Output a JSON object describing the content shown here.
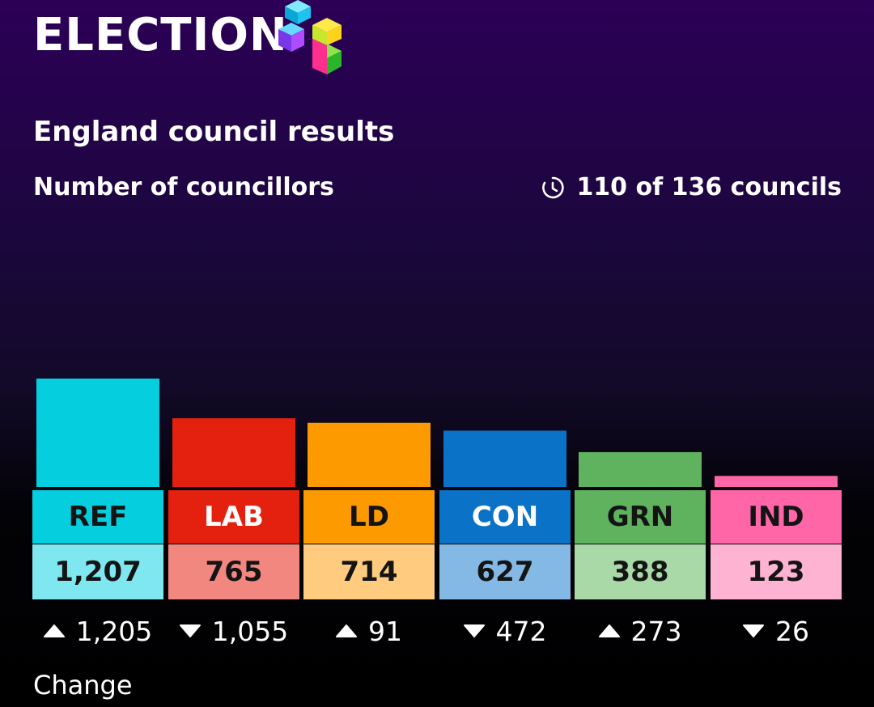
{
  "header": {
    "logo_text": "ELECTION"
  },
  "title": "England council results",
  "subtitle": "Number of councillors",
  "progress": "110 of 136 councils",
  "change_label": "Change",
  "chart_data": {
    "type": "bar",
    "title": "England council results",
    "ylabel": "Number of councillors",
    "categories": [
      "REF",
      "LAB",
      "LD",
      "CON",
      "GRN",
      "IND"
    ],
    "values": [
      1207,
      765,
      714,
      627,
      388,
      123
    ],
    "value_labels": [
      "1,207",
      "765",
      "714",
      "627",
      "388",
      "123"
    ],
    "changes": [
      {
        "direction": "up",
        "label": "1,205"
      },
      {
        "direction": "down",
        "label": "1,055"
      },
      {
        "direction": "up",
        "label": "91"
      },
      {
        "direction": "down",
        "label": "472"
      },
      {
        "direction": "up",
        "label": "273"
      },
      {
        "direction": "down",
        "label": "26"
      }
    ],
    "colors": [
      "#05cfdf",
      "#e4200f",
      "#fd9a00",
      "#0a73c8",
      "#5fb35f",
      "#ff66a8"
    ],
    "label_colors": [
      "#141414",
      "#ffffff",
      "#141414",
      "#ffffff",
      "#141414",
      "#141414"
    ],
    "value_bg": [
      "#7ee7ef",
      "#f2877f",
      "#fecb7f",
      "#83b9e4",
      "#a9d9a7",
      "#ffb3d3"
    ],
    "grid": false
  }
}
